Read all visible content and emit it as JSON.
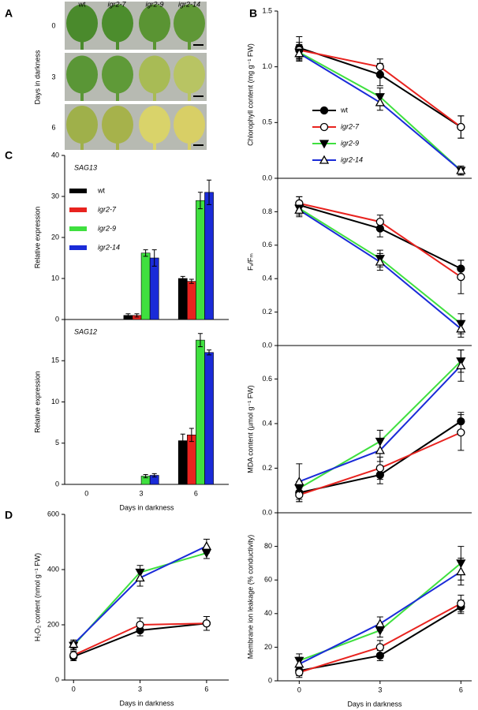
{
  "panel_labels": [
    "A",
    "B",
    "C",
    "D"
  ],
  "panel_a": {
    "columns": [
      "wt",
      "igr2-7",
      "igr2-9",
      "igr2-14"
    ],
    "rows": [
      "0",
      "3",
      "6"
    ],
    "ylabel": "Days in darkness"
  },
  "chart_data": [
    {
      "type": "line",
      "ylabel": "Chlorophyll content (mg g⁻¹ FW)",
      "x": [
        0,
        3,
        6
      ],
      "xlim": [
        -0.8,
        6.4
      ],
      "ylim": [
        0,
        1.5
      ],
      "yticks": [
        {
          "value": 0,
          "label": "0.0"
        },
        0.5,
        {
          "value": 1,
          "label": "1.0"
        },
        1.5
      ],
      "legend": true,
      "series": [
        {
          "name": "wt",
          "color": "#000000",
          "marker": "circle",
          "filled": true,
          "values": [
            1.17,
            0.93,
            0.46
          ],
          "errors": [
            0.1,
            0.1,
            0.1
          ]
        },
        {
          "name": "igr2-7",
          "color": "#e8231f",
          "marker": "circle",
          "filled": false,
          "values": [
            1.15,
            1.0,
            0.46
          ],
          "errors": [
            0.07,
            0.07,
            0.1
          ]
        },
        {
          "name": "igr2-9",
          "color": "#3fe03f",
          "marker": "triangle-down",
          "filled": true,
          "values": [
            1.13,
            0.73,
            0.07
          ],
          "errors": [
            0.07,
            0.08,
            0.04
          ]
        },
        {
          "name": "igr2-14",
          "color": "#1a2bd8",
          "marker": "triangle-up",
          "filled": false,
          "values": [
            1.12,
            0.68,
            0.07
          ],
          "errors": [
            0.07,
            0.07,
            0.04
          ]
        }
      ]
    },
    {
      "type": "line",
      "ylabel": "Fᵥ/Fₘ",
      "x": [
        0,
        3,
        6
      ],
      "xlim": [
        -0.8,
        6.4
      ],
      "ylim": [
        0,
        1.0
      ],
      "yticks": [
        {
          "value": 0,
          "label": "0.0"
        },
        0.2,
        0.4,
        0.6,
        0.8
      ],
      "series": [
        {
          "name": "wt",
          "color": "#000000",
          "marker": "circle",
          "filled": true,
          "values": [
            0.84,
            0.7,
            0.46
          ],
          "errors": [
            0.05,
            0.05,
            0.05
          ]
        },
        {
          "name": "igr2-7",
          "color": "#e8231f",
          "marker": "circle",
          "filled": false,
          "values": [
            0.85,
            0.74,
            0.41
          ],
          "errors": [
            0.04,
            0.04,
            0.1
          ]
        },
        {
          "name": "igr2-9",
          "color": "#3fe03f",
          "marker": "triangle-down",
          "filled": true,
          "values": [
            0.82,
            0.52,
            0.13
          ],
          "errors": [
            0.04,
            0.05,
            0.06
          ]
        },
        {
          "name": "igr2-14",
          "color": "#1a2bd8",
          "marker": "triangle-up",
          "filled": false,
          "values": [
            0.81,
            0.5,
            0.1
          ],
          "errors": [
            0.04,
            0.05,
            0.05
          ]
        }
      ]
    },
    {
      "type": "line",
      "ylabel": "MDA content (µmol g⁻¹ FW)",
      "x": [
        0,
        3,
        6
      ],
      "xlim": [
        -0.8,
        6.4
      ],
      "ylim": [
        0,
        0.75
      ],
      "yticks": [
        {
          "value": 0,
          "label": "0.0"
        },
        0.2,
        0.4,
        0.6
      ],
      "series": [
        {
          "name": "wt",
          "color": "#000000",
          "marker": "circle",
          "filled": true,
          "values": [
            0.09,
            0.17,
            0.41
          ],
          "errors": [
            0.04,
            0.04,
            0.04
          ]
        },
        {
          "name": "igr2-7",
          "color": "#e8231f",
          "marker": "circle",
          "filled": false,
          "values": [
            0.08,
            0.2,
            0.36
          ],
          "errors": [
            0.03,
            0.05,
            0.08
          ]
        },
        {
          "name": "igr2-9",
          "color": "#3fe03f",
          "marker": "triangle-down",
          "filled": true,
          "values": [
            0.11,
            0.32,
            0.68
          ],
          "errors": [
            0.03,
            0.05,
            0.05
          ]
        },
        {
          "name": "igr2-14",
          "color": "#1a2bd8",
          "marker": "triangle-up",
          "filled": false,
          "values": [
            0.14,
            0.28,
            0.66
          ],
          "errors": [
            0.08,
            0.05,
            0.07
          ]
        }
      ]
    },
    {
      "type": "line",
      "ylabel": "Membrane ion leakage (% conductivity)",
      "xlabel": "Days in darkness",
      "x": [
        0,
        3,
        6
      ],
      "xlim": [
        -0.8,
        6.4
      ],
      "xticks": [
        0,
        3,
        6
      ],
      "ylim": [
        0,
        100
      ],
      "yticks": [
        0,
        20,
        40,
        60,
        80
      ],
      "series": [
        {
          "name": "wt",
          "color": "#000000",
          "marker": "circle",
          "filled": true,
          "values": [
            6,
            15,
            44
          ],
          "errors": [
            3,
            3,
            4
          ]
        },
        {
          "name": "igr2-7",
          "color": "#e8231f",
          "marker": "circle",
          "filled": false,
          "values": [
            5,
            20,
            46
          ],
          "errors": [
            3,
            4,
            5
          ]
        },
        {
          "name": "igr2-9",
          "color": "#3fe03f",
          "marker": "triangle-down",
          "filled": true,
          "values": [
            12,
            30,
            70
          ],
          "errors": [
            4,
            4,
            10
          ]
        },
        {
          "name": "igr2-14",
          "color": "#1a2bd8",
          "marker": "triangle-up",
          "filled": false,
          "values": [
            10,
            34,
            65
          ],
          "errors": [
            4,
            4,
            8
          ]
        }
      ]
    },
    {
      "type": "bar",
      "annotation": "SAG13",
      "ylabel": "Relative expression",
      "categories": [
        null,
        null,
        null
      ],
      "ylim": [
        0,
        40
      ],
      "yticks": [
        0,
        10,
        20,
        30,
        40
      ],
      "legend": true,
      "series": [
        {
          "name": "wt",
          "color": "#000000",
          "values": [
            0,
            1,
            10
          ],
          "errors": [
            0,
            0.4,
            0.5
          ]
        },
        {
          "name": "igr2-7",
          "color": "#e8231f",
          "values": [
            0,
            1,
            9.3
          ],
          "errors": [
            0,
            0.4,
            0.5
          ]
        },
        {
          "name": "igr2-9",
          "color": "#3fe03f",
          "values": [
            0,
            16.2,
            29
          ],
          "errors": [
            0,
            0.8,
            2
          ]
        },
        {
          "name": "igr2-14",
          "color": "#1a2bd8",
          "values": [
            0,
            15,
            31
          ],
          "errors": [
            0,
            2,
            3
          ]
        }
      ]
    },
    {
      "type": "bar",
      "annotation": "SAG12",
      "ylabel": "Relative expression",
      "xlabel": "Days in darkness",
      "categories": [
        "0",
        "3",
        "6"
      ],
      "ylim": [
        0,
        20
      ],
      "yticks": [
        0,
        5,
        10,
        15
      ],
      "series": [
        {
          "name": "wt",
          "color": "#000000",
          "values": [
            0,
            0,
            5.3
          ],
          "errors": [
            0,
            0,
            0.8
          ]
        },
        {
          "name": "igr2-7",
          "color": "#e8231f",
          "values": [
            0,
            0,
            6
          ],
          "errors": [
            0,
            0,
            0.8
          ]
        },
        {
          "name": "igr2-9",
          "color": "#3fe03f",
          "values": [
            0,
            1,
            17.5
          ],
          "errors": [
            0,
            0.2,
            0.8
          ]
        },
        {
          "name": "igr2-14",
          "color": "#1a2bd8",
          "values": [
            0,
            1.1,
            16
          ],
          "errors": [
            0,
            0.2,
            0.3
          ]
        }
      ]
    },
    {
      "type": "line",
      "ylabel": "H₂O₂ content (nmol g⁻¹ FW)",
      "xlabel": "Days in darkness",
      "x": [
        0,
        3,
        6
      ],
      "xlim": [
        -0.4,
        7.0
      ],
      "xticks": [
        0,
        3,
        6
      ],
      "ylim": [
        0,
        600
      ],
      "yticks": [
        0,
        200,
        400,
        600
      ],
      "series": [
        {
          "name": "wt",
          "color": "#000000",
          "marker": "circle",
          "filled": true,
          "values": [
            85,
            180,
            205
          ],
          "errors": [
            15,
            20,
            25
          ]
        },
        {
          "name": "igr2-7",
          "color": "#e8231f",
          "marker": "circle",
          "filled": false,
          "values": [
            90,
            200,
            205
          ],
          "errors": [
            15,
            25,
            25
          ]
        },
        {
          "name": "igr2-9",
          "color": "#3fe03f",
          "marker": "triangle-down",
          "filled": true,
          "values": [
            125,
            390,
            460
          ],
          "errors": [
            15,
            25,
            20
          ]
        },
        {
          "name": "igr2-14",
          "color": "#1a2bd8",
          "marker": "triangle-up",
          "filled": false,
          "values": [
            130,
            370,
            485
          ],
          "errors": [
            15,
            30,
            25
          ]
        }
      ]
    }
  ]
}
